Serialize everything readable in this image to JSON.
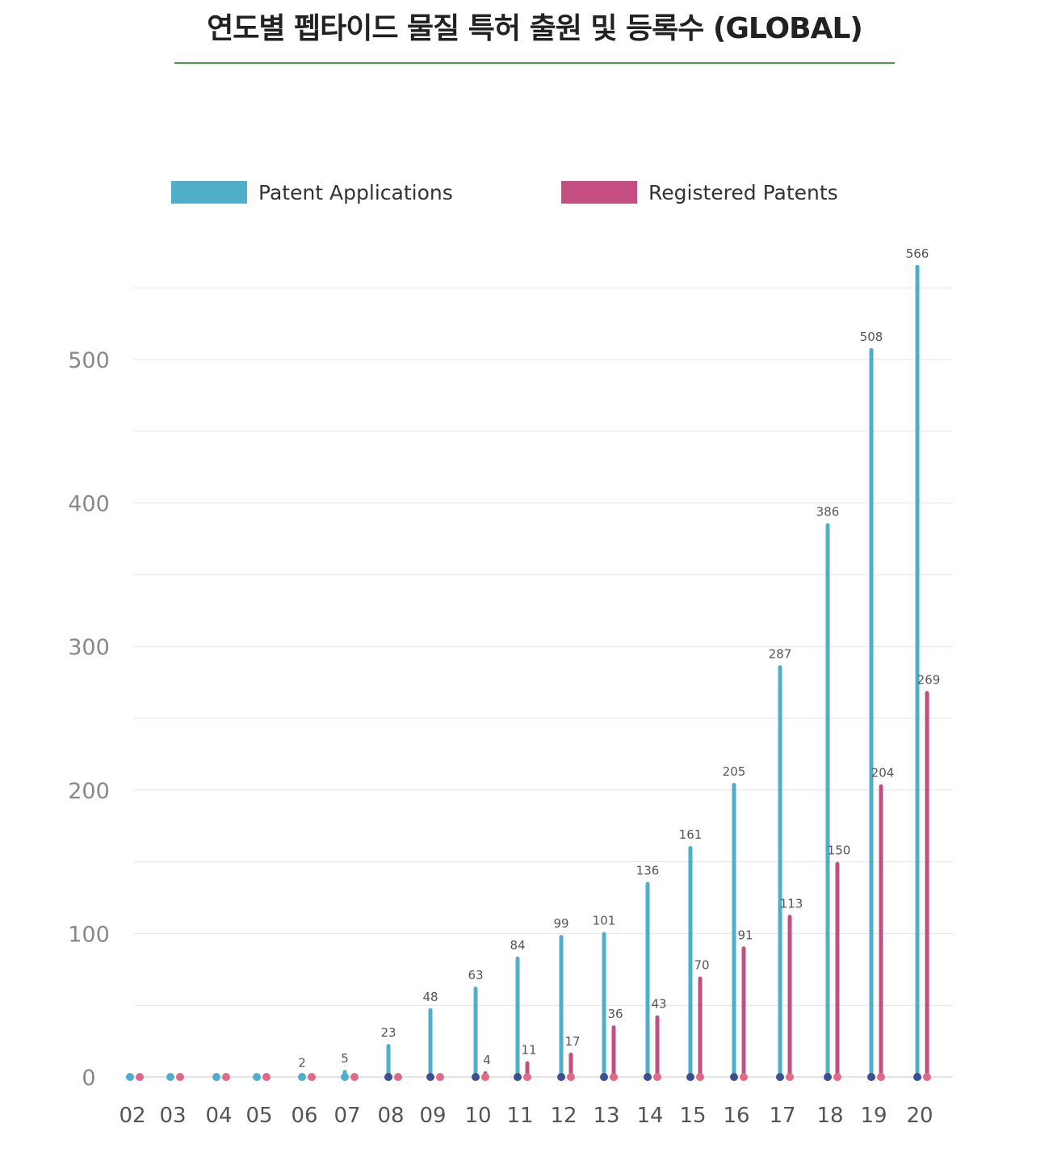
{
  "page": {
    "title": "연도별 펩타이드 물질 특허 출원 및 등록수 (GLOBAL)"
  },
  "colors": {
    "applications": "#4fafca",
    "registered": "#c44d82",
    "base_dot_dark": "#3d4f8f",
    "grid": "#e4e4e4",
    "tick_text": "#888888",
    "year_text": "#555555",
    "value_text": "#555555",
    "title_rule": "#4e9a4c"
  },
  "legend": {
    "applications_label": "Patent Applications",
    "registered_label": "Registered Patents",
    "placement": "top"
  },
  "chart_data": {
    "type": "bar",
    "title": "연도별 펩타이드 물질 특허 출원 및 등록수 (GLOBAL)",
    "xlabel": "",
    "ylabel": "",
    "categories": [
      "02",
      "03",
      "04",
      "05",
      "06",
      "07",
      "08",
      "09",
      "10",
      "11",
      "12",
      "13",
      "14",
      "15",
      "16",
      "17",
      "18",
      "19",
      "20"
    ],
    "series": [
      {
        "name": "Patent Applications",
        "values": [
          0,
          0,
          0,
          0,
          2,
          5,
          23,
          48,
          63,
          84,
          99,
          101,
          136,
          161,
          205,
          287,
          386,
          508,
          566
        ]
      },
      {
        "name": "Registered Patents",
        "values": [
          0,
          0,
          0,
          0,
          0,
          0,
          0,
          0,
          4,
          11,
          17,
          36,
          43,
          70,
          91,
          113,
          150,
          204,
          269
        ]
      }
    ],
    "value_labels": {
      "applications": [
        "",
        "",
        "",
        "",
        "2",
        "5",
        "23",
        "48",
        "63",
        "84",
        "99",
        "101",
        "136",
        "161",
        "205",
        "287",
        "386",
        "508",
        "566"
      ],
      "registered": [
        "",
        "",
        "",
        "",
        "",
        "",
        "",
        "",
        "4",
        "11",
        "17",
        "36",
        "43",
        "70",
        "91",
        "113",
        "150",
        "204",
        "269"
      ]
    },
    "yticks": [
      "0",
      "100",
      "200",
      "300",
      "400",
      "500"
    ],
    "ytick_values": [
      0,
      100,
      200,
      300,
      400,
      500
    ],
    "ylim": [
      0,
      566
    ],
    "grid": true
  }
}
